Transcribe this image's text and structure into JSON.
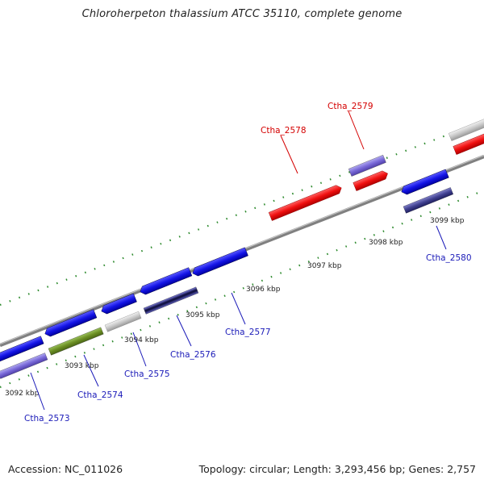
{
  "title": "Chloroherpeton thalassium ATCC 35110, complete genome",
  "footer": {
    "accession": "Accession: NC_011026",
    "summary": "Topology: circular; Length: 3,293,456 bp; Genes: 2,757"
  },
  "colors": {
    "backbone": "#808080",
    "dots": "#2e8b2e",
    "label_forward": "#d40000",
    "label_reverse": "#1a1ab8"
  },
  "scale_ticks": [
    "3092 kbp",
    "3093 kbp",
    "3094 kbp",
    "3095 kbp",
    "3096 kbp",
    "3097 kbp",
    "3098 kbp",
    "3099 kbp"
  ],
  "gene_labels": [
    {
      "name": "Ctha_2578",
      "strand": "forward"
    },
    {
      "name": "Ctha_2579",
      "strand": "forward"
    },
    {
      "name": "Ctha_2573",
      "strand": "reverse"
    },
    {
      "name": "Ctha_2574",
      "strand": "reverse"
    },
    {
      "name": "Ctha_2575",
      "strand": "reverse"
    },
    {
      "name": "Ctha_2576",
      "strand": "reverse"
    },
    {
      "name": "Ctha_2577",
      "strand": "reverse"
    },
    {
      "name": "Ctha_2580",
      "strand": "reverse"
    }
  ]
}
